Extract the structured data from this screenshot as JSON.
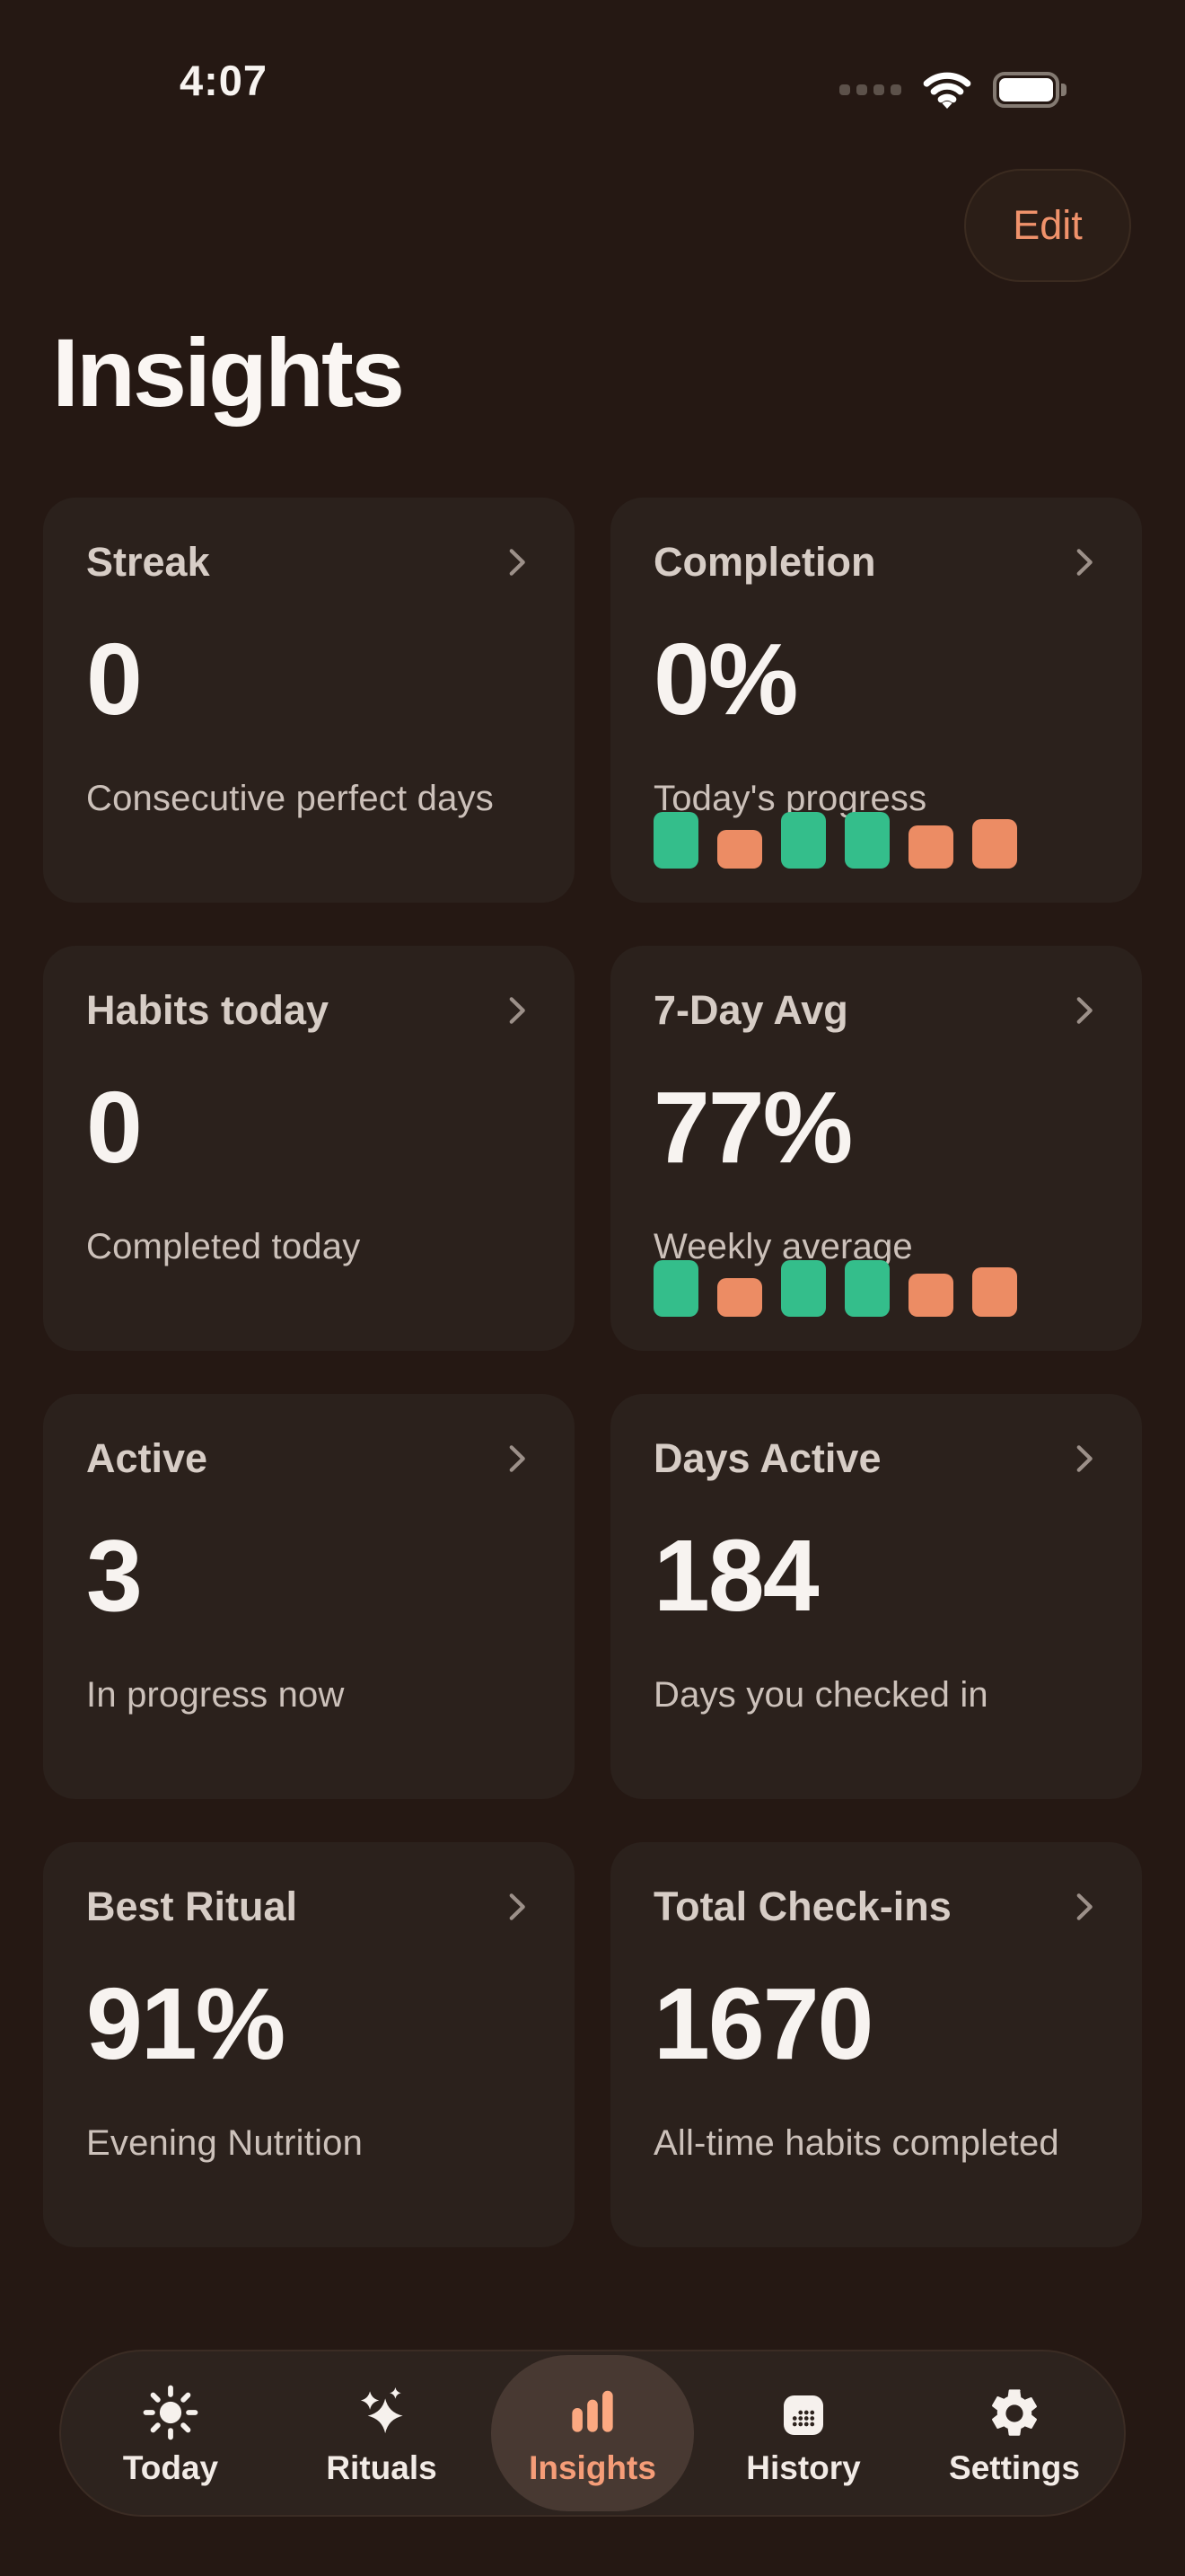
{
  "colors": {
    "background": "#251813",
    "card": "#2B211C",
    "accent": "#F59D78",
    "accent_bright": "#FCA981",
    "green": "#34BE8B",
    "orange": "#EC8C64",
    "text_primary": "#F7F3F0",
    "text_secondary": "#D7CDC6",
    "text_tertiary": "#CCC1BA"
  },
  "status_bar": {
    "time": "4:07",
    "icons": [
      "cellular-dots-icon",
      "wifi-icon",
      "battery-icon"
    ],
    "battery_level": "full"
  },
  "header": {
    "edit_button": "Edit",
    "title": "Insights"
  },
  "cards": [
    {
      "title": "Streak",
      "value": "0",
      "subtitle": "Consecutive perfect days",
      "chart": null
    },
    {
      "title": "Completion",
      "value": "0%",
      "subtitle": "Today's progress",
      "chart": 0
    },
    {
      "title": "Habits today",
      "value": "0",
      "subtitle": "Completed today",
      "chart": null
    },
    {
      "title": "7-Day Avg",
      "value": "77%",
      "subtitle": "Weekly average",
      "chart": 1
    },
    {
      "title": "Active",
      "value": "3",
      "subtitle": "In progress now",
      "chart": null
    },
    {
      "title": "Days Active",
      "value": "184",
      "subtitle": "Days you checked in",
      "chart": null
    },
    {
      "title": "Best Ritual",
      "value": "91%",
      "subtitle": "Evening Nutrition",
      "chart": null
    },
    {
      "title": "Total Check-ins",
      "value": "1670",
      "subtitle": "All-time habits completed",
      "chart": null
    }
  ],
  "chart_data": [
    {
      "type": "bar",
      "title": "Today's progress mini bars (Completion card)",
      "values": [
        100,
        68,
        100,
        100,
        76,
        88
      ],
      "bar_colors": [
        "green",
        "orange",
        "green",
        "green",
        "orange",
        "orange"
      ],
      "ylim": [
        0,
        100
      ]
    },
    {
      "type": "bar",
      "title": "Weekly average mini bars (7-Day Avg card)",
      "values": [
        100,
        68,
        100,
        100,
        76,
        88
      ],
      "bar_colors": [
        "green",
        "orange",
        "green",
        "green",
        "orange",
        "orange"
      ],
      "ylim": [
        0,
        100
      ]
    }
  ],
  "tab_bar": {
    "items": [
      {
        "label": "Today",
        "icon": "sun-icon",
        "active": false
      },
      {
        "label": "Rituals",
        "icon": "sparkles-icon",
        "active": false
      },
      {
        "label": "Insights",
        "icon": "bar-chart-icon",
        "active": true
      },
      {
        "label": "History",
        "icon": "calendar-icon",
        "active": false
      },
      {
        "label": "Settings",
        "icon": "gear-icon",
        "active": false
      }
    ]
  }
}
